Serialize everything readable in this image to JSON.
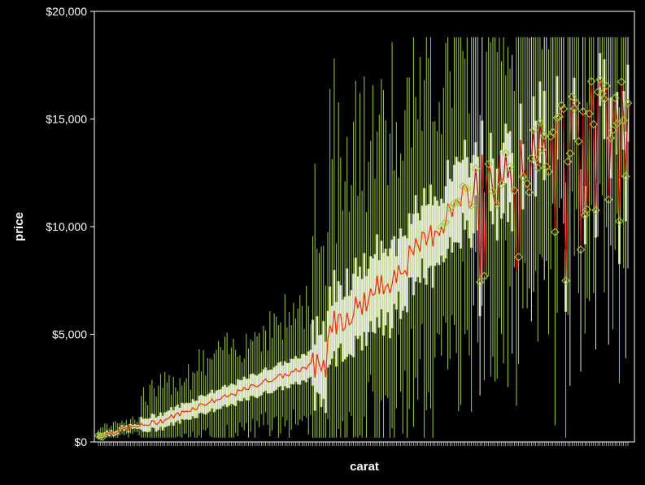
{
  "chart_data": {
    "type": "boxplot",
    "title": "",
    "xlabel": "carat",
    "ylabel": "price",
    "ylim": [
      0,
      20000
    ],
    "y_ticks": [
      {
        "value": 0,
        "label": "$0"
      },
      {
        "value": 5000,
        "label": "$5,000"
      },
      {
        "value": 10000,
        "label": "$10,000"
      },
      {
        "value": 15000,
        "label": "$15,000"
      },
      {
        "value": 20000,
        "label": "$20,000"
      }
    ],
    "x_tick_labels_shown": false,
    "grid": false,
    "category_count": 248,
    "mean_anchors": [
      {
        "i": 0,
        "y": 300
      },
      {
        "i": 10,
        "y": 550
      },
      {
        "i": 20,
        "y": 750
      },
      {
        "i": 30,
        "y": 1000
      },
      {
        "i": 40,
        "y": 1400
      },
      {
        "i": 50,
        "y": 1800
      },
      {
        "i": 60,
        "y": 2100
      },
      {
        "i": 70,
        "y": 2500
      },
      {
        "i": 80,
        "y": 2900
      },
      {
        "i": 90,
        "y": 3200
      },
      {
        "i": 100,
        "y": 3600
      },
      {
        "i": 106,
        "y": 3700
      },
      {
        "i": 108,
        "y": 5500
      },
      {
        "i": 120,
        "y": 6200
      },
      {
        "i": 135,
        "y": 7500
      },
      {
        "i": 150,
        "y": 9000
      },
      {
        "i": 165,
        "y": 10800
      },
      {
        "i": 180,
        "y": 12000
      },
      {
        "i": 195,
        "y": 12500
      },
      {
        "i": 210,
        "y": 14000
      },
      {
        "i": 225,
        "y": 15000
      },
      {
        "i": 235,
        "y": 15500
      },
      {
        "i": 247,
        "y": 16000
      }
    ],
    "colors": {
      "background": "#000000",
      "panel_border": "#ffffff",
      "axis_text": "#ffffff",
      "whisker": "#9acd32",
      "box": "#e8e8e8",
      "mean_line": "#ff2a00",
      "mean_marker": "#9acd32",
      "sparse_mean_line": "#cc0000"
    }
  }
}
